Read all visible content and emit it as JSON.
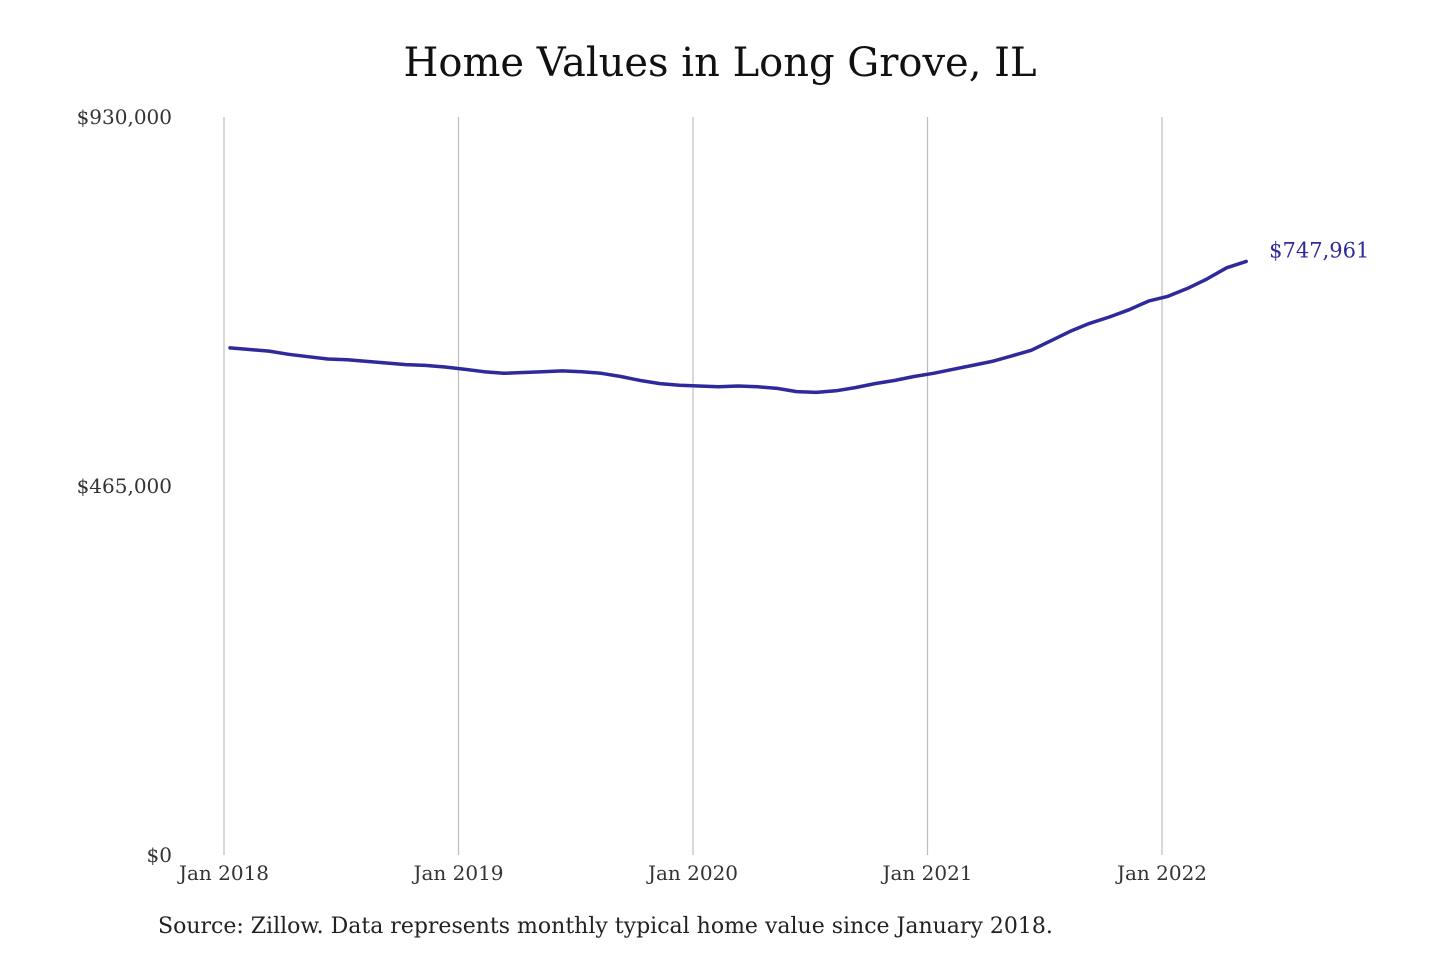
{
  "chart_data": {
    "type": "line",
    "title": "Home Values in Long Grove, IL",
    "xlabel": "",
    "ylabel": "",
    "ylim": [
      0,
      930000
    ],
    "y_ticks": [
      {
        "value": 0,
        "label": "$0"
      },
      {
        "value": 465000,
        "label": "$465,000"
      },
      {
        "value": 930000,
        "label": "$930,000"
      }
    ],
    "x_ticks": [
      {
        "date": "2018-01",
        "label": "Jan 2018"
      },
      {
        "date": "2019-01",
        "label": "Jan 2019"
      },
      {
        "date": "2020-01",
        "label": "Jan 2020"
      },
      {
        "date": "2021-01",
        "label": "Jan 2021"
      },
      {
        "date": "2022-01",
        "label": "Jan 2022"
      }
    ],
    "grid": "vertical at x ticks",
    "line_color": "#2e2a9b",
    "end_label": "$747,961",
    "series": [
      {
        "x": [
          "2018-01",
          "2018-02",
          "2018-03",
          "2018-04",
          "2018-05",
          "2018-06",
          "2018-07",
          "2018-08",
          "2018-09",
          "2018-10",
          "2018-11",
          "2018-12",
          "2019-01",
          "2019-02",
          "2019-03",
          "2019-04",
          "2019-05",
          "2019-06",
          "2019-07",
          "2019-08",
          "2019-09",
          "2019-10",
          "2019-11",
          "2019-12",
          "2020-01",
          "2020-02",
          "2020-03",
          "2020-04",
          "2020-05",
          "2020-06",
          "2020-07",
          "2020-08",
          "2020-09",
          "2020-10",
          "2020-11",
          "2020-12",
          "2021-01",
          "2021-02",
          "2021-03",
          "2021-04",
          "2021-05",
          "2021-06",
          "2021-07",
          "2021-08",
          "2021-09",
          "2021-10",
          "2021-11",
          "2021-12",
          "2022-01",
          "2022-02",
          "2022-03",
          "2022-04",
          "2022-05"
        ],
        "values": [
          639000,
          637000,
          635000,
          631000,
          628000,
          625000,
          624000,
          622000,
          620000,
          618000,
          617000,
          615000,
          612000,
          609000,
          607000,
          608000,
          609000,
          610000,
          609000,
          607000,
          603000,
          598000,
          594000,
          592000,
          591000,
          590000,
          591000,
          590000,
          588000,
          584000,
          583000,
          585000,
          589000,
          594000,
          598000,
          603000,
          607000,
          612000,
          617000,
          622000,
          629000,
          636000,
          648000,
          660000,
          670000,
          678000,
          687000,
          698000,
          704000,
          714000,
          726000,
          740000,
          748000
        ]
      }
    ]
  },
  "source_text": "Source: Zillow. Data represents monthly typical home value since January 2018."
}
